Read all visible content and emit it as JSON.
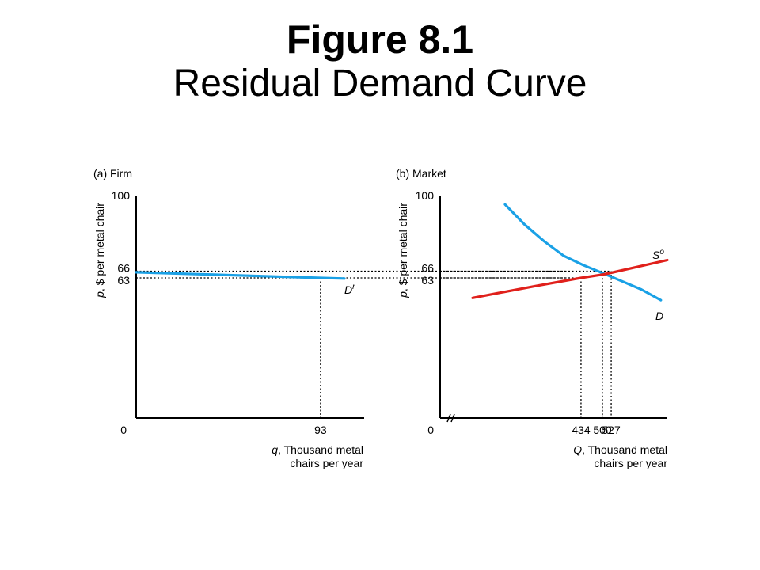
{
  "title": {
    "main": "Figure 8.1",
    "subtitle": "Residual Demand Curve"
  },
  "colors": {
    "demand": "#1aa1e6",
    "supply": "#e0201b",
    "axis": "#000000",
    "guide": "#000000"
  },
  "chart_data": [
    {
      "type": "line",
      "panel_title": "(a) Firm",
      "ylabel_var": "p",
      "ylabel_rest": ", $ per metal chair",
      "xlabel_var": "q",
      "xlabel_rest": ", Thousand metal",
      "xlabel_line2": "chairs per year",
      "ylim": [
        0,
        100
      ],
      "xlim": [
        0,
        115
      ],
      "grid": false,
      "y_ticks": [
        "0",
        "63",
        "66",
        "100"
      ],
      "x_ticks": [
        "93"
      ],
      "series": [
        {
          "name": "D",
          "label_sup": "r",
          "color_key": "demand",
          "x": [
            0,
            93,
            105
          ],
          "y": [
            65.5,
            63,
            62.7
          ]
        }
      ],
      "guides": [
        {
          "kind": "h",
          "y": 66
        },
        {
          "kind": "h",
          "y": 63
        },
        {
          "kind": "v",
          "x": 93,
          "y": 63
        }
      ]
    },
    {
      "type": "line",
      "panel_title": "(b) Market",
      "ylabel_var": "p",
      "ylabel_rest": ", $ per metal chair",
      "xlabel_var": "Q",
      "xlabel_rest": ", Thousand metal",
      "xlabel_line2": "chairs per year",
      "ylim": [
        0,
        100
      ],
      "xlim": [
        0,
        700
      ],
      "axis_break": true,
      "grid": false,
      "y_ticks": [
        "0",
        "63",
        "66",
        "100"
      ],
      "x_ticks": [
        "434",
        "500",
        "527"
      ],
      "series": [
        {
          "name": "D",
          "label_sup": "",
          "color_key": "demand",
          "x": [
            200,
            260,
            320,
            380,
            440,
            500,
            560,
            620,
            680
          ],
          "y": [
            96,
            87,
            79.5,
            73,
            68.8,
            65.2,
            61.5,
            57.8,
            53
          ]
        },
        {
          "name": "S",
          "label_sup": "o",
          "color_key": "supply",
          "x": [
            100,
            300,
            434,
            500,
            527,
            700
          ],
          "y": [
            54,
            59.5,
            63,
            64.5,
            65.3,
            71
          ]
        }
      ],
      "guides": [
        {
          "kind": "h",
          "y": 66
        },
        {
          "kind": "h",
          "y": 63
        },
        {
          "kind": "v",
          "x": 434,
          "y": 63
        },
        {
          "kind": "v",
          "x": 500,
          "y": 64.5
        },
        {
          "kind": "v",
          "x": 527,
          "y": 66
        }
      ]
    }
  ]
}
